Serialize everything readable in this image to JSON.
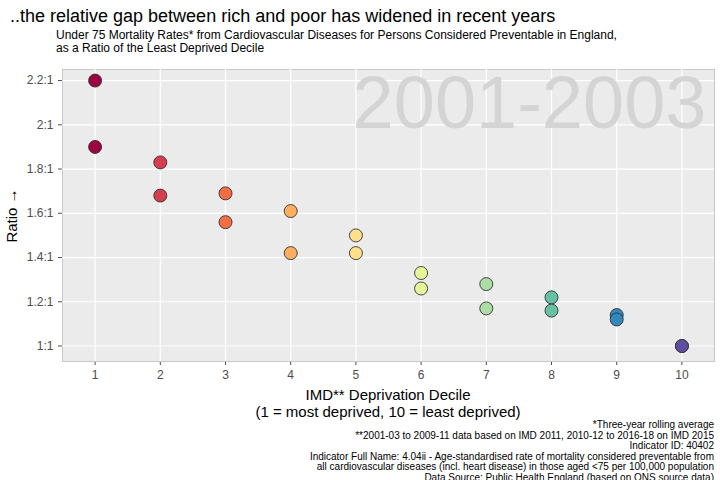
{
  "chart_data": {
    "type": "scatter",
    "title": "..the relative gap between rich and poor has widened in recent years",
    "subtitle": [
      "Under 75 Mortality Rates* from Cardiovascular Diseases for Persons Considered Preventable in England,",
      "as a Ratio of the Least Deprived Decile"
    ],
    "annotation": "2001-2003",
    "x_label": "IMD** Deprivation Decile\n(1 = most deprived, 10 = least deprived)",
    "y_label": "Ratio",
    "x": [
      1,
      2,
      3,
      4,
      5,
      6,
      7,
      8,
      9,
      10
    ],
    "series": [
      {
        "colors": [
          "#9e0142",
          "#d53e4f",
          "#f46d43",
          "#fdae61",
          "#fee08b",
          "#e6f598",
          "#abdda4",
          "#66c2a5",
          "#3288bd",
          "#5e4fa2"
        ],
        "values": [
          2.2,
          1.83,
          1.69,
          1.61,
          1.5,
          1.33,
          1.28,
          1.22,
          1.14,
          1.0
        ]
      },
      {
        "colors": [
          "#9e0142",
          "#d53e4f",
          "#f46d43",
          "#fdae61",
          "#fee08b",
          "#e6f598",
          "#abdda4",
          "#66c2a5",
          "#3288bd",
          "#5e4fa2"
        ],
        "values": [
          1.9,
          1.68,
          1.56,
          1.42,
          1.42,
          1.26,
          1.17,
          1.16,
          1.12,
          1.0
        ]
      }
    ],
    "xlim": [
      0.5,
      10.5
    ],
    "ylim": [
      0.93,
      2.25
    ],
    "xticks": [
      1,
      2,
      3,
      4,
      5,
      6,
      7,
      8,
      9,
      10
    ],
    "yticks": [
      {
        "value": 1,
        "label": "1:1"
      },
      {
        "value": 1.2,
        "label": "1.2:1"
      },
      {
        "value": 1.4,
        "label": "1.4:1"
      },
      {
        "value": 1.6,
        "label": "1.6:1"
      },
      {
        "value": 1.8,
        "label": "1.8:1"
      },
      {
        "value": 2,
        "label": "2:1"
      },
      {
        "value": 2.2,
        "label": "2.2:1"
      }
    ],
    "grid": true,
    "marker": "circle",
    "caption": [
      "*Three-year rolling average",
      "**2001-03 to 2009-11 data based on IMD 2011, 2010-12 to 2016-18 on IMD 2015",
      "Indicator ID: 40402",
      "Indicator Full Name: 4.04ii - Age-standardised rate of mortality considered preventable from",
      "all cardiovascular diseases (incl. heart disease) in those aged <75 per 100,000 population",
      "Data Source: Public Health England (based on ONS source data)"
    ]
  }
}
